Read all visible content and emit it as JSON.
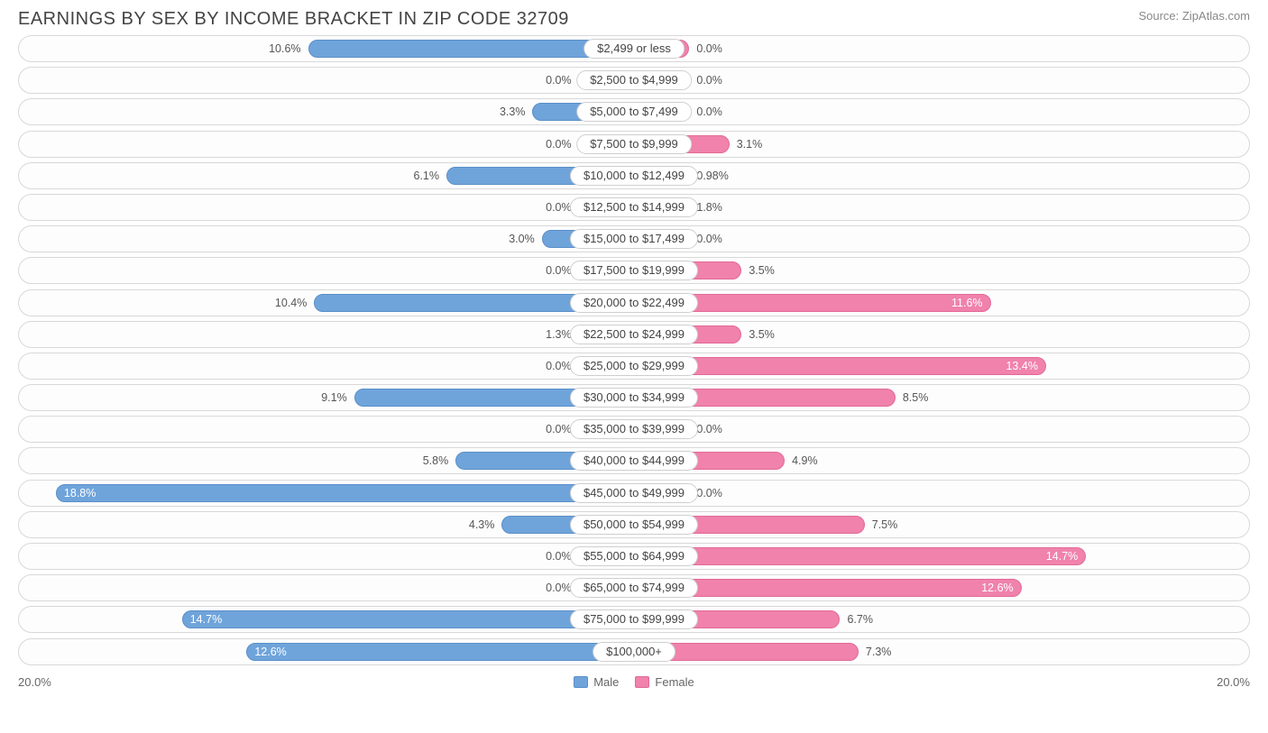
{
  "title": "EARNINGS BY SEX BY INCOME BRACKET IN ZIP CODE 32709",
  "source": "Source: ZipAtlas.com",
  "chart": {
    "type": "diverging-bar",
    "axis_max_percent": 20.0,
    "axis_label_left": "20.0%",
    "axis_label_right": "20.0%",
    "min_bar_percent": 1.8,
    "inside_label_threshold_percent": 11.0,
    "colors": {
      "male_fill": "#6fa4db",
      "male_border": "#5a8fc7",
      "female_fill": "#f082ab",
      "female_border": "#e26a97",
      "row_border": "#d8d8d8",
      "text": "#555555",
      "pill_border": "#cfcfcf",
      "background": "#ffffff"
    },
    "legend": {
      "male": "Male",
      "female": "Female"
    },
    "rows": [
      {
        "label": "$2,499 or less",
        "male": 10.6,
        "female": 0.0
      },
      {
        "label": "$2,500 to $4,999",
        "male": 0.0,
        "female": 0.0
      },
      {
        "label": "$5,000 to $7,499",
        "male": 3.3,
        "female": 0.0
      },
      {
        "label": "$7,500 to $9,999",
        "male": 0.0,
        "female": 3.1
      },
      {
        "label": "$10,000 to $12,499",
        "male": 6.1,
        "female": 0.98
      },
      {
        "label": "$12,500 to $14,999",
        "male": 0.0,
        "female": 1.8
      },
      {
        "label": "$15,000 to $17,499",
        "male": 3.0,
        "female": 0.0
      },
      {
        "label": "$17,500 to $19,999",
        "male": 0.0,
        "female": 3.5
      },
      {
        "label": "$20,000 to $22,499",
        "male": 10.4,
        "female": 11.6
      },
      {
        "label": "$22,500 to $24,999",
        "male": 1.3,
        "female": 3.5
      },
      {
        "label": "$25,000 to $29,999",
        "male": 0.0,
        "female": 13.4
      },
      {
        "label": "$30,000 to $34,999",
        "male": 9.1,
        "female": 8.5
      },
      {
        "label": "$35,000 to $39,999",
        "male": 0.0,
        "female": 0.0
      },
      {
        "label": "$40,000 to $44,999",
        "male": 5.8,
        "female": 4.9
      },
      {
        "label": "$45,000 to $49,999",
        "male": 18.8,
        "female": 0.0
      },
      {
        "label": "$50,000 to $54,999",
        "male": 4.3,
        "female": 7.5
      },
      {
        "label": "$55,000 to $64,999",
        "male": 0.0,
        "female": 14.7
      },
      {
        "label": "$65,000 to $74,999",
        "male": 0.0,
        "female": 12.6
      },
      {
        "label": "$75,000 to $99,999",
        "male": 14.7,
        "female": 6.7
      },
      {
        "label": "$100,000+",
        "male": 12.6,
        "female": 7.3
      }
    ]
  }
}
